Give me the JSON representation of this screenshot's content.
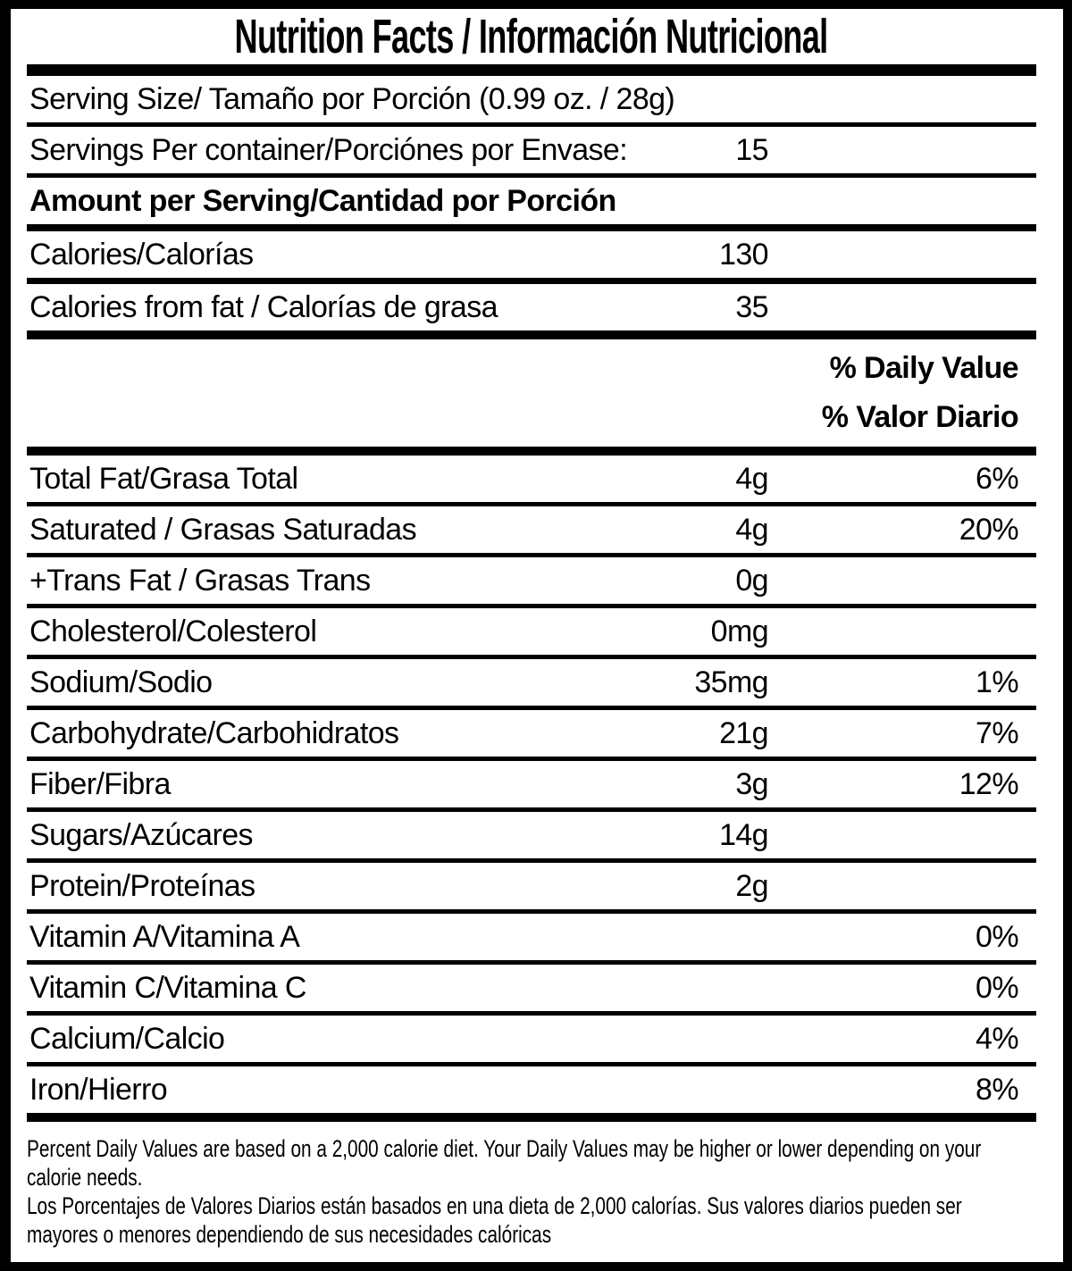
{
  "label": {
    "title": "Nutrition Facts / Información Nutricional",
    "serving_size_label": "Serving Size/ Tamaño por Porción  (0.99 oz. / 28g)",
    "servings_per_container_label": "Servings Per container/Porciónes por Envase:",
    "servings_per_container_value": "15",
    "amount_per_serving_label": "Amount per Serving/Cantidad por Porción",
    "calories_label": "Calories/Calorías",
    "calories_value": "130",
    "calories_from_fat_label": "Calories from fat / Calorías de grasa",
    "calories_from_fat_value": "35",
    "daily_value_header_en": "% Daily Value",
    "daily_value_header_es": "% Valor Diario",
    "nutrients": [
      {
        "label": "Total Fat/Grasa Total",
        "amount": "4g",
        "dv": "6%"
      },
      {
        "label": "Saturated / Grasas Saturadas",
        "amount": "4g",
        "dv": "20%"
      },
      {
        "label": "+Trans Fat / Grasas Trans",
        "amount": "0g",
        "dv": ""
      },
      {
        "label": "Cholesterol/Colesterol",
        "amount": "0mg",
        "dv": ""
      },
      {
        "label": "Sodium/Sodio",
        "amount": "35mg",
        "dv": "1%"
      },
      {
        "label": "Carbohydrate/Carbohidratos",
        "amount": "21g",
        "dv": "7%"
      },
      {
        "label": "Fiber/Fibra",
        "amount": "3g",
        "dv": "12%"
      },
      {
        "label": "Sugars/Azúcares",
        "amount": "14g",
        "dv": ""
      },
      {
        "label": "Protein/Proteínas",
        "amount": "2g",
        "dv": ""
      },
      {
        "label": "Vitamin A/Vitamina A",
        "amount": "",
        "dv": "0%"
      },
      {
        "label": "Vitamin C/Vitamina C",
        "amount": "",
        "dv": "0%"
      },
      {
        "label": "Calcium/Calcio",
        "amount": "",
        "dv": "4%"
      },
      {
        "label": "Iron/Hierro",
        "amount": "",
        "dv": "8%"
      }
    ],
    "footnote_lines": [
      "Percent Daily Values are based on a 2,000 calorie diet. Your Daily Values may be higher or lower depending on your",
      "calorie needs.",
      "Los Porcentajes de Valores Diarios están basados en una dieta de 2,000 calorías. Sus valores diarios pueden ser",
      "mayores o menores dependiendo de sus necesidades calóricas"
    ]
  }
}
